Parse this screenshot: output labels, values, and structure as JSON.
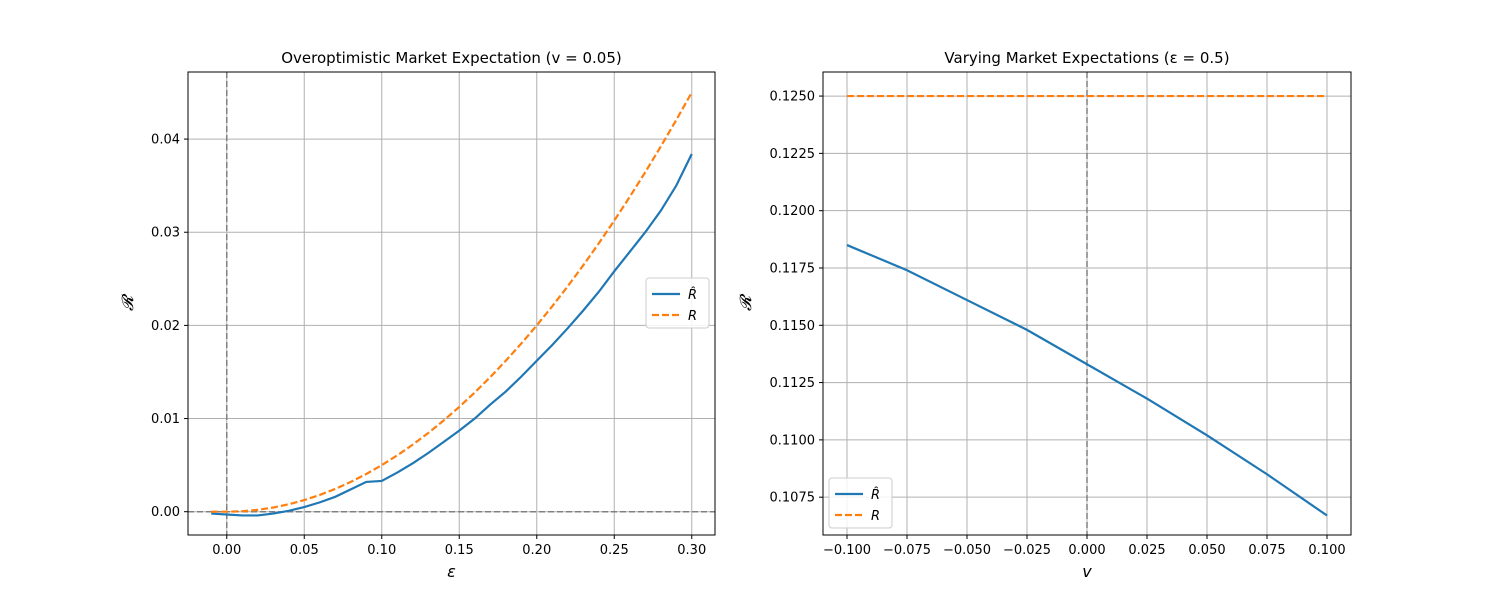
{
  "chart_data": [
    {
      "type": "line",
      "title": "Overoptimistic Market Expectation (v = 0.05)",
      "xlabel": "ε",
      "ylabel": "𝓡",
      "xlim": [
        -0.025,
        0.315
      ],
      "ylim": [
        -0.0025,
        0.0472
      ],
      "xticks": [
        0.0,
        0.05,
        0.1,
        0.15,
        0.2,
        0.25,
        0.3
      ],
      "xtick_labels": [
        "0.00",
        "0.05",
        "0.10",
        "0.15",
        "0.20",
        "0.25",
        "0.30"
      ],
      "yticks": [
        0.0,
        0.01,
        0.02,
        0.03,
        0.04
      ],
      "ytick_labels": [
        "0.00",
        "0.01",
        "0.02",
        "0.03",
        "0.04"
      ],
      "grid": true,
      "legend": "center-right",
      "reference_lines": [
        {
          "axis": "x",
          "value": 0.0
        },
        {
          "axis": "y",
          "value": 0.0
        }
      ],
      "series": [
        {
          "name": "R̂",
          "color": "#1f77b4",
          "style": "solid",
          "x": [
            -0.01,
            0.0,
            0.01,
            0.02,
            0.03,
            0.04,
            0.05,
            0.06,
            0.07,
            0.08,
            0.09,
            0.1,
            0.11,
            0.12,
            0.13,
            0.14,
            0.15,
            0.16,
            0.17,
            0.18,
            0.19,
            0.2,
            0.21,
            0.22,
            0.23,
            0.24,
            0.25,
            0.26,
            0.27,
            0.28,
            0.29,
            0.3
          ],
          "y": [
            -0.0002,
            -0.0003,
            -0.0004,
            -0.0004,
            -0.0002,
            0.0001,
            0.0005,
            0.001,
            0.0016,
            0.0024,
            0.0032,
            0.0033,
            0.0042,
            0.0052,
            0.0063,
            0.0075,
            0.0087,
            0.01,
            0.0115,
            0.0129,
            0.0145,
            0.0162,
            0.0179,
            0.0197,
            0.0216,
            0.0236,
            0.0258,
            0.0279,
            0.03,
            0.0323,
            0.035,
            0.0384
          ]
        },
        {
          "name": "R",
          "color": "#ff7f0e",
          "style": "dashed",
          "x": [
            -0.01,
            0.0,
            0.01,
            0.02,
            0.03,
            0.04,
            0.05,
            0.06,
            0.07,
            0.08,
            0.09,
            0.1,
            0.11,
            0.12,
            0.13,
            0.14,
            0.15,
            0.16,
            0.17,
            0.18,
            0.19,
            0.2,
            0.21,
            0.22,
            0.23,
            0.24,
            0.25,
            0.26,
            0.27,
            0.28,
            0.29,
            0.3
          ],
          "y": [
            0.0,
            0.0,
            5e-05,
            0.0002,
            0.00045,
            0.0008,
            0.00125,
            0.0018,
            0.00245,
            0.0032,
            0.00405,
            0.005,
            0.00605,
            0.0072,
            0.00845,
            0.0098,
            0.01125,
            0.0128,
            0.01445,
            0.0162,
            0.01805,
            0.02,
            0.02205,
            0.0242,
            0.02645,
            0.0288,
            0.03125,
            0.0338,
            0.03645,
            0.0392,
            0.04205,
            0.045
          ]
        }
      ]
    },
    {
      "type": "line",
      "title": "Varying Market Expectations (ε = 0.5)",
      "xlabel": "v",
      "ylabel": "𝓡",
      "xlim": [
        -0.11,
        0.11
      ],
      "ylim": [
        0.10585,
        0.12605
      ],
      "xticks": [
        -0.1,
        -0.075,
        -0.05,
        -0.025,
        0.0,
        0.025,
        0.05,
        0.075,
        0.1
      ],
      "xtick_labels": [
        "−0.100",
        "−0.075",
        "−0.050",
        "−0.025",
        "0.000",
        "0.025",
        "0.050",
        "0.075",
        "0.100"
      ],
      "yticks": [
        0.1075,
        0.11,
        0.1125,
        0.115,
        0.1175,
        0.12,
        0.1225,
        0.125
      ],
      "ytick_labels": [
        "0.1075",
        "0.1100",
        "0.1125",
        "0.1150",
        "0.1175",
        "0.1200",
        "0.1225",
        "0.1250"
      ],
      "grid": true,
      "legend": "lower-left",
      "reference_lines": [
        {
          "axis": "x",
          "value": 0.0
        }
      ],
      "series": [
        {
          "name": "R̂",
          "color": "#1f77b4",
          "style": "solid",
          "x": [
            -0.1,
            -0.075,
            -0.05,
            -0.025,
            0.0,
            0.025,
            0.05,
            0.075,
            0.1
          ],
          "y": [
            0.1185,
            0.1174,
            0.1161,
            0.1148,
            0.1133,
            0.1118,
            0.1102,
            0.1085,
            0.1067
          ]
        },
        {
          "name": "R",
          "color": "#ff7f0e",
          "style": "dashed",
          "x": [
            -0.1,
            0.1
          ],
          "y": [
            0.125,
            0.125
          ]
        }
      ]
    }
  ]
}
